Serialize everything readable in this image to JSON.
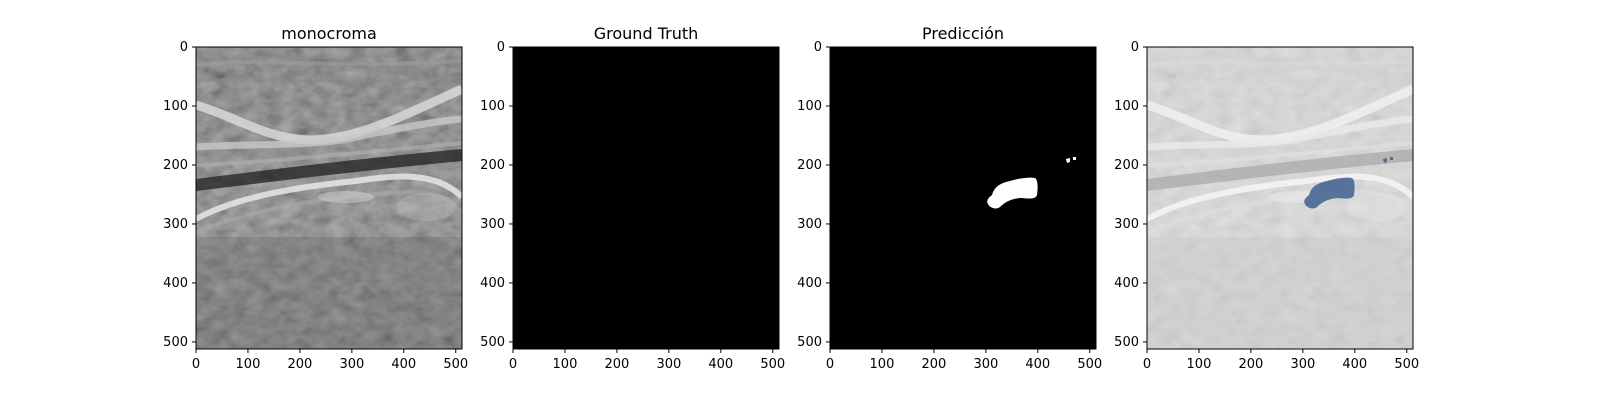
{
  "figure": {
    "background": "#ffffff",
    "panels": [
      {
        "id": "monocroma",
        "title": "monocroma",
        "image": "grayscale ultrasound image",
        "xlim": [
          0,
          512
        ],
        "ylim": [
          512,
          0
        ],
        "xticks": [
          0,
          100,
          200,
          300,
          400,
          500
        ],
        "yticks": [
          0,
          100,
          200,
          300,
          400,
          500
        ]
      },
      {
        "id": "ground-truth",
        "title": "Ground Truth",
        "image": "empty binary mask (all black)",
        "xlim": [
          0,
          512
        ],
        "ylim": [
          512,
          0
        ],
        "xticks": [
          0,
          100,
          200,
          300,
          400,
          500
        ],
        "yticks": [
          0,
          100,
          200,
          300,
          400,
          500
        ]
      },
      {
        "id": "prediccion",
        "title": "Predicción",
        "image": "binary mask with white predicted region near x 300-390, y 220-270 and small blobs near x 450-475, y 188-195",
        "xlim": [
          0,
          512
        ],
        "ylim": [
          512,
          0
        ],
        "xticks": [
          0,
          100,
          200,
          300,
          400,
          500
        ],
        "yticks": [
          0,
          100,
          200,
          300,
          400,
          500
        ]
      },
      {
        "id": "overlay",
        "title": "",
        "image": "lightened ultrasound with predicted region overlaid in blue",
        "xlim": [
          0,
          512
        ],
        "ylim": [
          512,
          0
        ],
        "xticks": [
          0,
          100,
          200,
          300,
          400,
          500
        ],
        "yticks": [
          0,
          100,
          200,
          300,
          400,
          500
        ],
        "overlay_color": "#3f5f8f"
      }
    ]
  },
  "chart_data": [
    {
      "type": "heatmap",
      "title": "monocroma",
      "xlabel": "",
      "ylabel": "",
      "xlim": [
        0,
        512
      ],
      "ylim": [
        512,
        0
      ]
    },
    {
      "type": "heatmap",
      "title": "Ground Truth",
      "xlabel": "",
      "ylabel": "",
      "xlim": [
        0,
        512
      ],
      "ylim": [
        512,
        0
      ]
    },
    {
      "type": "heatmap",
      "title": "Predicción",
      "xlabel": "",
      "ylabel": "",
      "xlim": [
        0,
        512
      ],
      "ylim": [
        512,
        0
      ],
      "regions": [
        {
          "x_range": [
            300,
            390
          ],
          "y_range": [
            220,
            270
          ]
        },
        {
          "x_range": [
            450,
            475
          ],
          "y_range": [
            188,
            196
          ]
        }
      ]
    },
    {
      "type": "heatmap",
      "title": "",
      "xlabel": "",
      "ylabel": "",
      "xlim": [
        0,
        512
      ],
      "ylim": [
        512,
        0
      ],
      "regions": [
        {
          "x_range": [
            300,
            390
          ],
          "y_range": [
            220,
            270
          ]
        },
        {
          "x_range": [
            450,
            475
          ],
          "y_range": [
            188,
            196
          ]
        }
      ]
    }
  ]
}
